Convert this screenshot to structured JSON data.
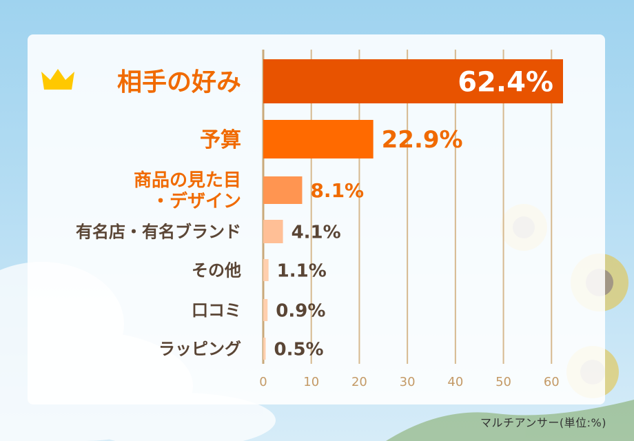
{
  "chart_data": {
    "type": "bar",
    "orientation": "horizontal",
    "categories": [
      [
        "相手の好み"
      ],
      [
        "予算"
      ],
      [
        "商品の見た目",
        "・デザイン"
      ],
      [
        "有名店・有名ブランド"
      ],
      [
        "その他"
      ],
      [
        "口コミ"
      ],
      [
        "ラッピング"
      ]
    ],
    "values": [
      62.4,
      22.9,
      8.1,
      4.1,
      1.1,
      0.9,
      0.5
    ],
    "value_labels": [
      "62.4%",
      "22.9%",
      "8.1%",
      "4.1%",
      "1.1%",
      "0.9%",
      "0.5%"
    ],
    "xlim": [
      0,
      62
    ],
    "x_ticks": [
      0,
      10,
      20,
      30,
      40,
      50,
      60
    ],
    "grid": true,
    "colors": {
      "bars": [
        "#e85300",
        "#ff6a00",
        "#ff9551",
        "#ffbf96",
        "#ffcfae",
        "#ffcfae",
        "#ffcfae"
      ],
      "grid": "#d6b98f",
      "axis": "#c9a97a",
      "tick_label": "#c49a66",
      "highlight_label": "#f06a00",
      "label": "#5a4535",
      "crown": "#ffc800"
    },
    "icons": [
      "crown-icon"
    ]
  },
  "footnote": "マルチアンサー(単位:%)"
}
